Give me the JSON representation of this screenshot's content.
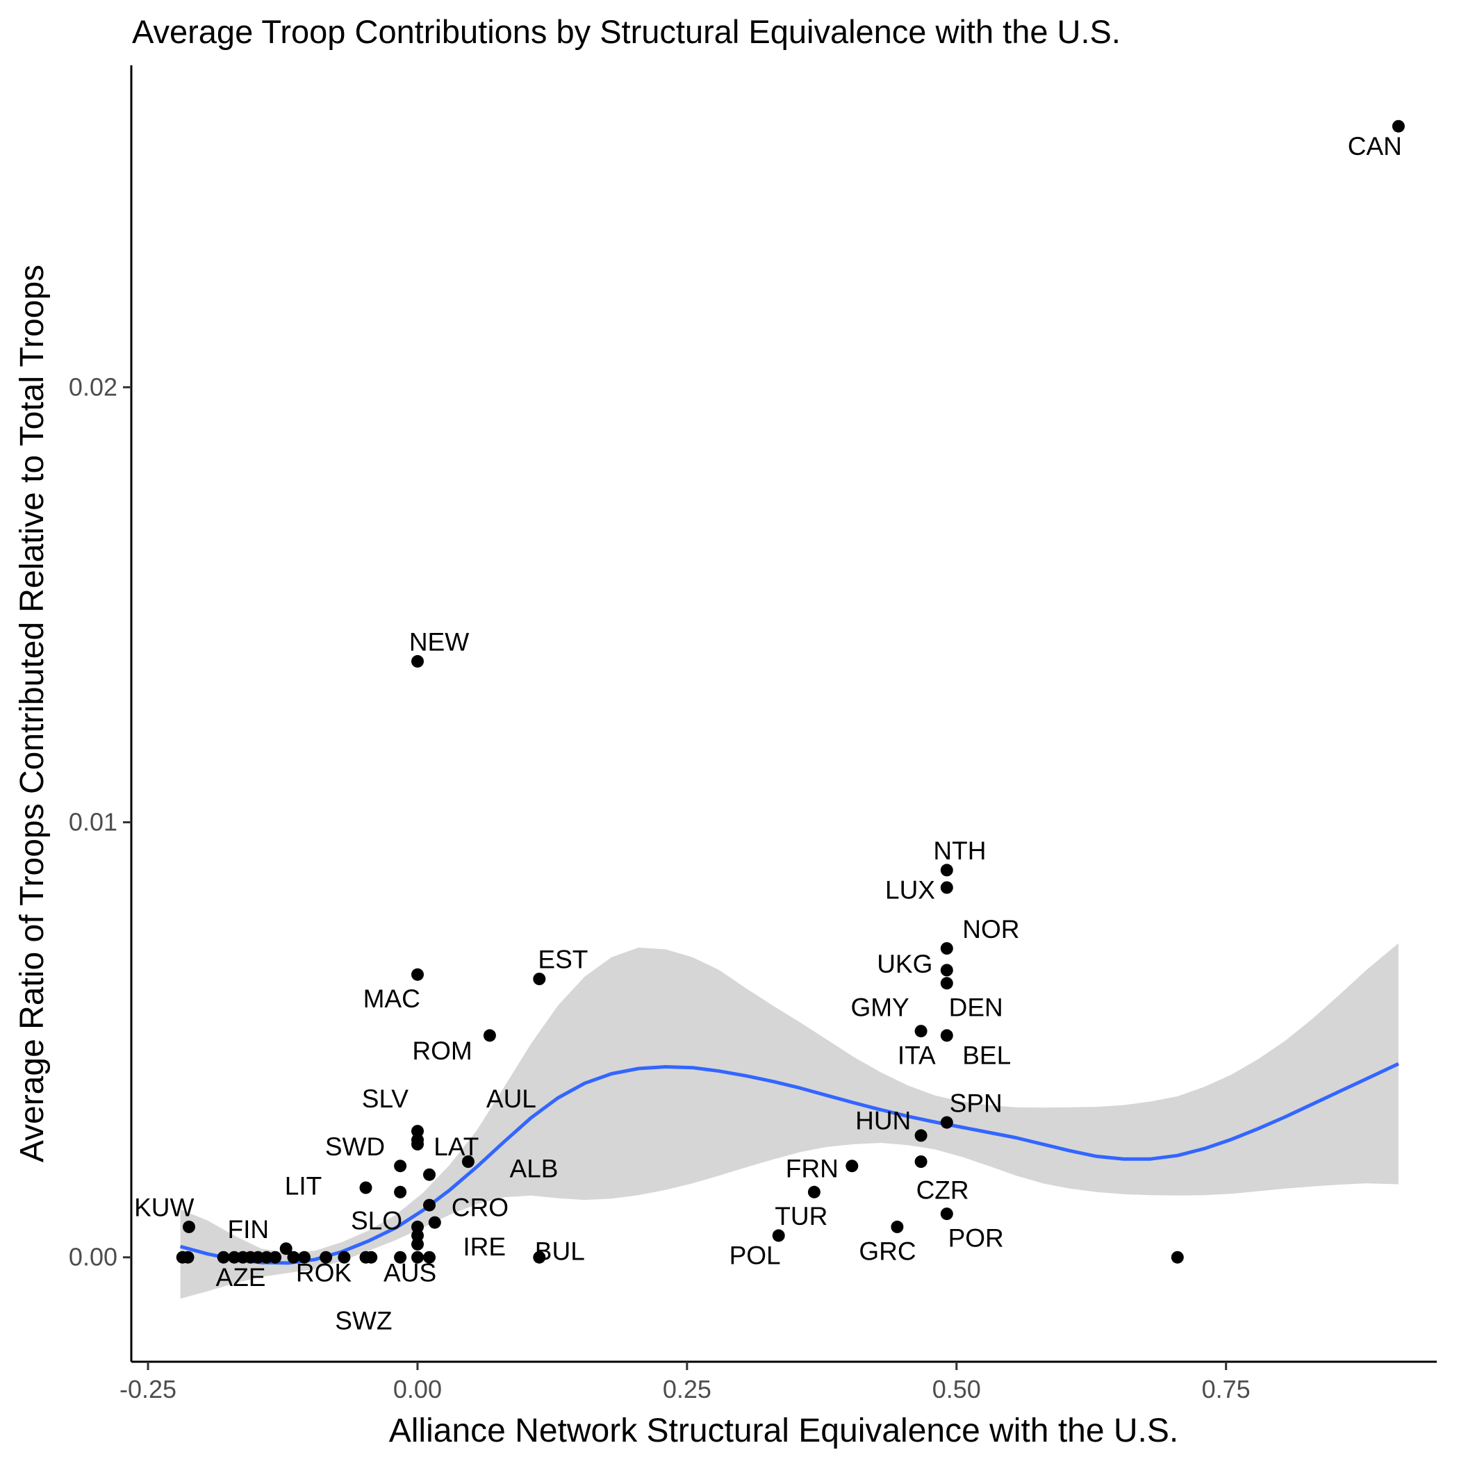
{
  "chart_data": {
    "type": "scatter",
    "title": "Average Troop Contributions by Structural Equivalence with the U.S.",
    "xlabel": "Alliance Network Structural Equivalence with the U.S.",
    "ylabel": "Average Ratio of Troops Contributed Relative to Total Troops",
    "xlim": [
      -0.2655,
      0.9455
    ],
    "ylim": [
      -0.0024,
      0.0274
    ],
    "x_ticks": [
      -0.25,
      0.0,
      0.25,
      0.5,
      0.75
    ],
    "x_tick_labels": [
      "-0.25",
      "0.00",
      "0.25",
      "0.50",
      "0.75"
    ],
    "y_ticks": [
      0.0,
      0.01,
      0.02
    ],
    "y_tick_labels": [
      "0.00",
      "0.01",
      "0.02"
    ],
    "grid": false,
    "colors": {
      "points": "#000000",
      "smooth_line": "#3366ff",
      "ribbon": "#d4d4d4",
      "labels": "#000000"
    },
    "points": [
      {
        "x": 0.91,
        "y": 0.026
      },
      {
        "x": 0.0,
        "y": 0.0137
      },
      {
        "x": 0.491,
        "y": 0.0089
      },
      {
        "x": 0.491,
        "y": 0.0085
      },
      {
        "x": 0.491,
        "y": 0.0071
      },
      {
        "x": 0.0,
        "y": 0.0065
      },
      {
        "x": 0.113,
        "y": 0.0064
      },
      {
        "x": 0.491,
        "y": 0.0066
      },
      {
        "x": 0.491,
        "y": 0.0063
      },
      {
        "x": 0.067,
        "y": 0.0051
      },
      {
        "x": 0.467,
        "y": 0.0052
      },
      {
        "x": 0.491,
        "y": 0.0051
      },
      {
        "x": 0.491,
        "y": 0.0031
      },
      {
        "x": 0.0,
        "y": 0.0029
      },
      {
        "x": 0.0,
        "y": 0.0027
      },
      {
        "x": 0.0,
        "y": 0.0026
      },
      {
        "x": 0.467,
        "y": 0.0028
      },
      {
        "x": 0.047,
        "y": 0.0022
      },
      {
        "x": 0.403,
        "y": 0.0021
      },
      {
        "x": 0.467,
        "y": 0.0022
      },
      {
        "x": -0.016,
        "y": 0.0021
      },
      {
        "x": 0.011,
        "y": 0.0019
      },
      {
        "x": -0.048,
        "y": 0.0016
      },
      {
        "x": -0.016,
        "y": 0.0015
      },
      {
        "x": 0.368,
        "y": 0.0015
      },
      {
        "x": 0.011,
        "y": 0.0012
      },
      {
        "x": 0.491,
        "y": 0.001
      },
      {
        "x": 0.016,
        "y": 0.0008
      },
      {
        "x": 0.0,
        "y": 0.0007
      },
      {
        "x": 0.445,
        "y": 0.0007
      },
      {
        "x": 0.335,
        "y": 0.0005
      },
      {
        "x": 0.0,
        "y": 0.0005
      },
      {
        "x": 0.0,
        "y": 0.0003
      },
      {
        "x": -0.212,
        "y": 0.0007
      },
      {
        "x": -0.122,
        "y": 0.0002
      },
      {
        "x": -0.218,
        "y": 0.0
      },
      {
        "x": -0.213,
        "y": 0.0
      },
      {
        "x": -0.18,
        "y": 0.0
      },
      {
        "x": -0.17,
        "y": 0.0
      },
      {
        "x": -0.162,
        "y": 0.0
      },
      {
        "x": -0.155,
        "y": 0.0
      },
      {
        "x": -0.148,
        "y": 0.0
      },
      {
        "x": -0.14,
        "y": 0.0
      },
      {
        "x": -0.132,
        "y": 0.0
      },
      {
        "x": -0.115,
        "y": 0.0
      },
      {
        "x": -0.105,
        "y": 0.0
      },
      {
        "x": -0.085,
        "y": 0.0
      },
      {
        "x": -0.068,
        "y": 0.0
      },
      {
        "x": -0.048,
        "y": 0.0
      },
      {
        "x": -0.043,
        "y": 0.0
      },
      {
        "x": -0.016,
        "y": 0.0
      },
      {
        "x": 0.0,
        "y": 0.0
      },
      {
        "x": 0.011,
        "y": 0.0
      },
      {
        "x": 0.113,
        "y": 0.0
      },
      {
        "x": 0.705,
        "y": 0.0
      }
    ],
    "labels": [
      {
        "text": "CAN",
        "x": 0.888,
        "y": 0.0255
      },
      {
        "text": "NEW",
        "x": 0.02,
        "y": 0.0141
      },
      {
        "text": "NTH",
        "x": 0.503,
        "y": 0.0093
      },
      {
        "text": "LUX",
        "x": 0.457,
        "y": 0.0084
      },
      {
        "text": "NOR",
        "x": 0.532,
        "y": 0.0075
      },
      {
        "text": "EST",
        "x": 0.135,
        "y": 0.0068
      },
      {
        "text": "UKG",
        "x": 0.452,
        "y": 0.0067
      },
      {
        "text": "MAC",
        "x": -0.024,
        "y": 0.0059
      },
      {
        "text": "GMY",
        "x": 0.429,
        "y": 0.0057
      },
      {
        "text": "DEN",
        "x": 0.518,
        "y": 0.0057
      },
      {
        "text": "ROM",
        "x": 0.023,
        "y": 0.0047
      },
      {
        "text": "ITA",
        "x": 0.463,
        "y": 0.0046
      },
      {
        "text": "BEL",
        "x": 0.528,
        "y": 0.0046
      },
      {
        "text": "SLV",
        "x": -0.03,
        "y": 0.0036
      },
      {
        "text": "AUL",
        "x": 0.087,
        "y": 0.0036
      },
      {
        "text": "SPN",
        "x": 0.518,
        "y": 0.0035
      },
      {
        "text": "HUN",
        "x": 0.432,
        "y": 0.0031
      },
      {
        "text": "SWD",
        "x": -0.058,
        "y": 0.0025
      },
      {
        "text": "LAT",
        "x": 0.036,
        "y": 0.0025
      },
      {
        "text": "ALB",
        "x": 0.108,
        "y": 0.002
      },
      {
        "text": "FRN",
        "x": 0.366,
        "y": 0.002
      },
      {
        "text": "LIT",
        "x": -0.106,
        "y": 0.0016
      },
      {
        "text": "CZR",
        "x": 0.487,
        "y": 0.0015
      },
      {
        "text": "KUW",
        "x": -0.235,
        "y": 0.0011
      },
      {
        "text": "CRO",
        "x": 0.058,
        "y": 0.0011
      },
      {
        "text": "TUR",
        "x": 0.356,
        "y": 0.0009
      },
      {
        "text": "SLO",
        "x": -0.038,
        "y": 0.0008
      },
      {
        "text": "FIN",
        "x": -0.157,
        "y": 0.0006
      },
      {
        "text": "POR",
        "x": 0.518,
        "y": 0.0004
      },
      {
        "text": "IRE",
        "x": 0.062,
        "y": 0.0002
      },
      {
        "text": "BUL",
        "x": 0.132,
        "y": 0.0001
      },
      {
        "text": "GRC",
        "x": 0.436,
        "y": 0.0001
      },
      {
        "text": "POL",
        "x": 0.313,
        "y": 0.0
      },
      {
        "text": "AZE",
        "x": -0.164,
        "y": -0.0005
      },
      {
        "text": "ROK",
        "x": -0.087,
        "y": -0.0004
      },
      {
        "text": "AUS",
        "x": -0.007,
        "y": -0.0004
      },
      {
        "text": "SWZ",
        "x": -0.05,
        "y": -0.0015
      }
    ],
    "smooth": {
      "x": [
        -0.22,
        -0.195,
        -0.17,
        -0.145,
        -0.12,
        -0.095,
        -0.07,
        -0.045,
        -0.02,
        0.005,
        0.03,
        0.055,
        0.08,
        0.105,
        0.13,
        0.155,
        0.18,
        0.205,
        0.23,
        0.255,
        0.28,
        0.305,
        0.33,
        0.355,
        0.38,
        0.405,
        0.43,
        0.455,
        0.48,
        0.505,
        0.53,
        0.555,
        0.58,
        0.605,
        0.63,
        0.655,
        0.68,
        0.705,
        0.73,
        0.755,
        0.78,
        0.805,
        0.83,
        0.855,
        0.88,
        0.91
      ],
      "y": [
        0.00025,
        8e-05,
        -5e-05,
        -0.00012,
        -0.00013,
        -5e-05,
        0.00013,
        0.00038,
        0.00068,
        0.00108,
        0.00155,
        0.00208,
        0.00265,
        0.0032,
        0.00366,
        0.004,
        0.00422,
        0.00434,
        0.00438,
        0.00436,
        0.00428,
        0.00417,
        0.00404,
        0.00389,
        0.00372,
        0.00355,
        0.00339,
        0.00324,
        0.00311,
        0.00299,
        0.00287,
        0.00275,
        0.0026,
        0.00245,
        0.00232,
        0.00226,
        0.00226,
        0.00234,
        0.0025,
        0.00271,
        0.00296,
        0.00323,
        0.00352,
        0.00381,
        0.0041,
        0.00445
      ],
      "ymin": [
        -0.00095,
        -0.00078,
        -0.0006,
        -0.00045,
        -0.00036,
        -0.00027,
        -8e-05,
        0.00015,
        0.0004,
        0.00068,
        0.00098,
        0.00122,
        0.00138,
        0.00142,
        0.00136,
        0.00132,
        0.00135,
        0.00143,
        0.00155,
        0.0017,
        0.00188,
        0.00207,
        0.00225,
        0.00242,
        0.00254,
        0.0026,
        0.00263,
        0.00258,
        0.00248,
        0.00231,
        0.0021,
        0.00188,
        0.0017,
        0.00158,
        0.0015,
        0.00145,
        0.00143,
        0.00142,
        0.00143,
        0.00146,
        0.00152,
        0.00158,
        0.00163,
        0.00167,
        0.0017,
        0.00168
      ],
      "ymax": [
        0.0011,
        0.00085,
        0.0005,
        0.0002,
        0.0001,
        0.00015,
        0.00035,
        0.00062,
        0.00098,
        0.00148,
        0.00213,
        0.00292,
        0.0039,
        0.0049,
        0.00578,
        0.00645,
        0.0069,
        0.00712,
        0.00708,
        0.0069,
        0.0066,
        0.00618,
        0.00578,
        0.0054,
        0.005,
        0.0046,
        0.00425,
        0.00395,
        0.00372,
        0.00358,
        0.0035,
        0.00345,
        0.00344,
        0.00345,
        0.00346,
        0.0035,
        0.00358,
        0.0037,
        0.00392,
        0.0042,
        0.00456,
        0.00498,
        0.00548,
        0.00603,
        0.0066,
        0.00722
      ]
    }
  }
}
